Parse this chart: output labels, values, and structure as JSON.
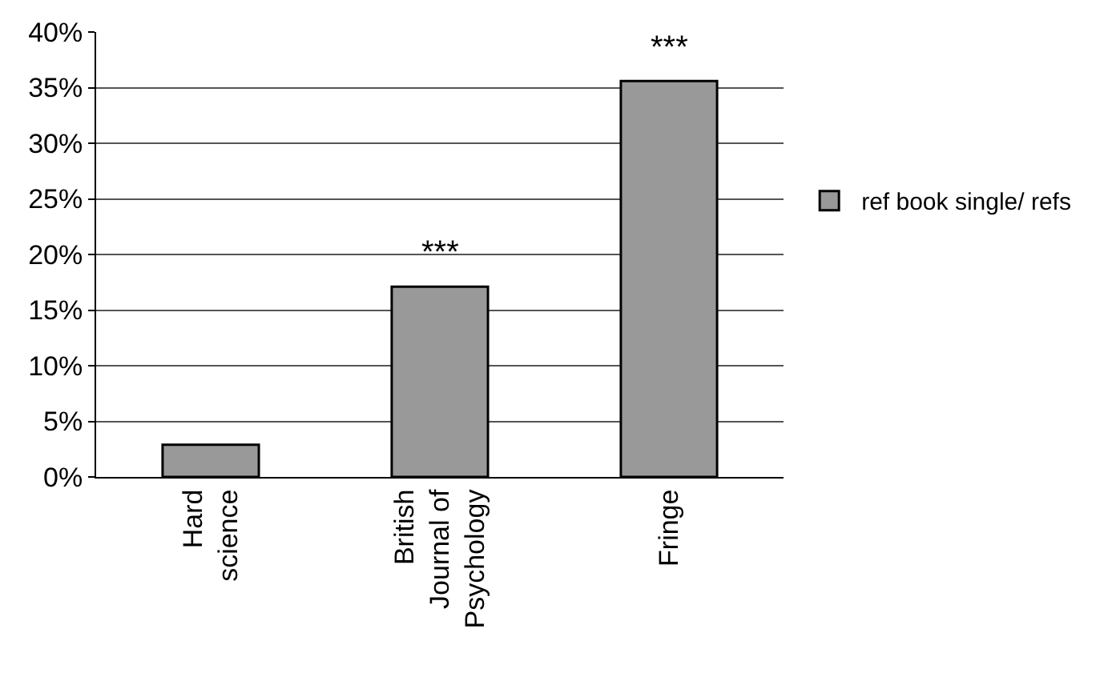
{
  "chart_data": {
    "type": "bar",
    "categories": [
      "Hard science",
      "British Journal of Psychology",
      "Fringe"
    ],
    "series": [
      {
        "name": "ref book single/ refs",
        "color": "#999999",
        "values": [
          2.9,
          17.1,
          35.6
        ]
      }
    ],
    "ylim": [
      0,
      40
    ],
    "yticks": [
      {
        "value": 0,
        "label": "0%"
      },
      {
        "value": 5,
        "label": "5%"
      },
      {
        "value": 10,
        "label": "10%"
      },
      {
        "value": 15,
        "label": "15%"
      },
      {
        "value": 20,
        "label": "20%"
      },
      {
        "value": 25,
        "label": "25%"
      },
      {
        "value": 30,
        "label": "30%"
      },
      {
        "value": 35,
        "label": "35%"
      },
      {
        "value": 40,
        "label": "40%"
      }
    ],
    "grid": "y",
    "legend": "right",
    "annotations": [
      {
        "text": "***",
        "x": "British Journal of Psychology",
        "y": 17.1
      },
      {
        "text": "***",
        "x": "Fringe",
        "y": 35.6
      }
    ]
  }
}
